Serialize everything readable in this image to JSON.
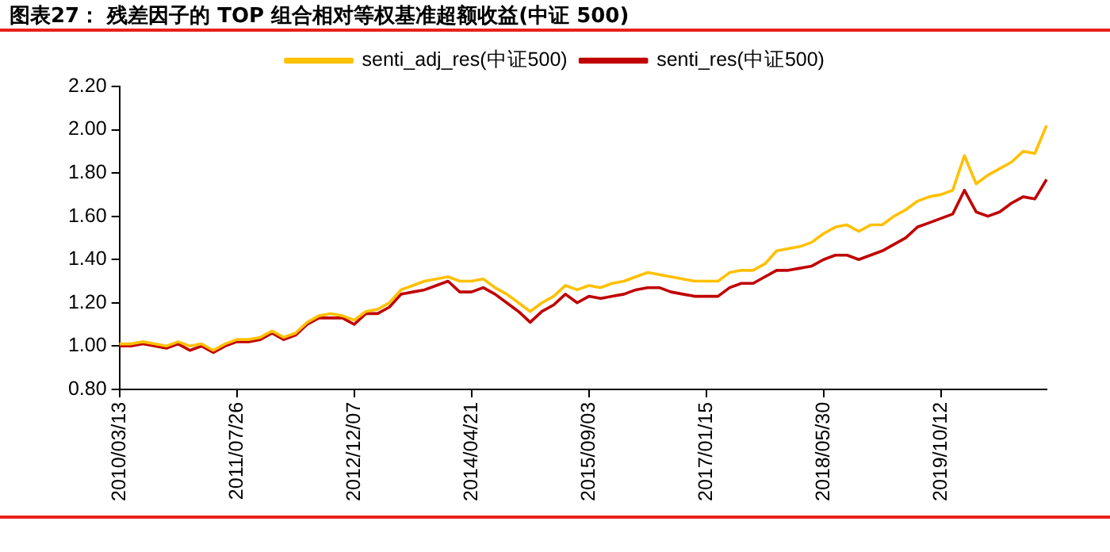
{
  "chart_data": {
    "type": "line",
    "title": "图表27：  残差因子的 TOP 组合相对等权基准超额收益(中证 500)",
    "categories": [
      "2010/03/13",
      null,
      null,
      null,
      null,
      null,
      null,
      null,
      null,
      null,
      "2011/07/26",
      null,
      null,
      null,
      null,
      null,
      null,
      null,
      null,
      null,
      "2012/12/07",
      null,
      null,
      null,
      null,
      null,
      null,
      null,
      null,
      null,
      "2014/04/21",
      null,
      null,
      null,
      null,
      null,
      null,
      null,
      null,
      null,
      "2015/09/03",
      null,
      null,
      null,
      null,
      null,
      null,
      null,
      null,
      null,
      "2017/01/15",
      null,
      null,
      null,
      null,
      null,
      null,
      null,
      null,
      null,
      "2018/05/30",
      null,
      null,
      null,
      null,
      null,
      null,
      null,
      null,
      null,
      "2019/10/12",
      null,
      null,
      null,
      null,
      null,
      null,
      null,
      null,
      null
    ],
    "series": [
      {
        "name": "senti_res(中证500)",
        "color": "#c00000",
        "values": [
          1.0,
          1.0,
          1.01,
          1.0,
          0.99,
          1.01,
          0.98,
          1.0,
          0.97,
          1.0,
          1.02,
          1.02,
          1.03,
          1.06,
          1.03,
          1.05,
          1.1,
          1.13,
          1.13,
          1.13,
          1.1,
          1.15,
          1.15,
          1.18,
          1.24,
          1.25,
          1.26,
          1.28,
          1.3,
          1.25,
          1.25,
          1.27,
          1.24,
          1.2,
          1.16,
          1.11,
          1.16,
          1.19,
          1.24,
          1.2,
          1.23,
          1.22,
          1.23,
          1.24,
          1.26,
          1.27,
          1.27,
          1.25,
          1.24,
          1.23,
          1.23,
          1.23,
          1.27,
          1.29,
          1.29,
          1.32,
          1.35,
          1.35,
          1.36,
          1.37,
          1.4,
          1.42,
          1.42,
          1.4,
          1.42,
          1.44,
          1.47,
          1.5,
          1.55,
          1.57,
          1.59,
          1.61,
          1.72,
          1.62,
          1.6,
          1.62,
          1.66,
          1.69,
          1.68,
          1.77
        ]
      },
      {
        "name": "senti_adj_res(中证500)",
        "color": "#ffc000",
        "values": [
          1.01,
          1.01,
          1.02,
          1.01,
          1.0,
          1.02,
          1.0,
          1.01,
          0.98,
          1.01,
          1.03,
          1.03,
          1.04,
          1.07,
          1.04,
          1.06,
          1.11,
          1.14,
          1.15,
          1.14,
          1.12,
          1.16,
          1.17,
          1.2,
          1.26,
          1.28,
          1.3,
          1.31,
          1.32,
          1.3,
          1.3,
          1.31,
          1.27,
          1.24,
          1.2,
          1.16,
          1.2,
          1.23,
          1.28,
          1.26,
          1.28,
          1.27,
          1.29,
          1.3,
          1.32,
          1.34,
          1.33,
          1.32,
          1.31,
          1.3,
          1.3,
          1.3,
          1.34,
          1.35,
          1.35,
          1.38,
          1.44,
          1.45,
          1.46,
          1.48,
          1.52,
          1.55,
          1.56,
          1.53,
          1.56,
          1.56,
          1.6,
          1.63,
          1.67,
          1.69,
          1.7,
          1.72,
          1.88,
          1.75,
          1.79,
          1.82,
          1.85,
          1.9,
          1.89,
          2.02
        ]
      }
    ],
    "ylim": [
      0.8,
      2.2
    ],
    "yticks": [
      {
        "value": 0.8,
        "label": "0.80"
      },
      {
        "value": 1.0,
        "label": "1.00"
      },
      {
        "value": 1.2,
        "label": "1.20"
      },
      {
        "value": 1.4,
        "label": "1.40"
      },
      {
        "value": 1.6,
        "label": "1.60"
      },
      {
        "value": 1.8,
        "label": "1.80"
      },
      {
        "value": 2.0,
        "label": "2.00"
      },
      {
        "value": 2.2,
        "label": "2.20"
      }
    ],
    "legend": "top",
    "grid": false,
    "marker": "none",
    "line_style": "solid"
  }
}
